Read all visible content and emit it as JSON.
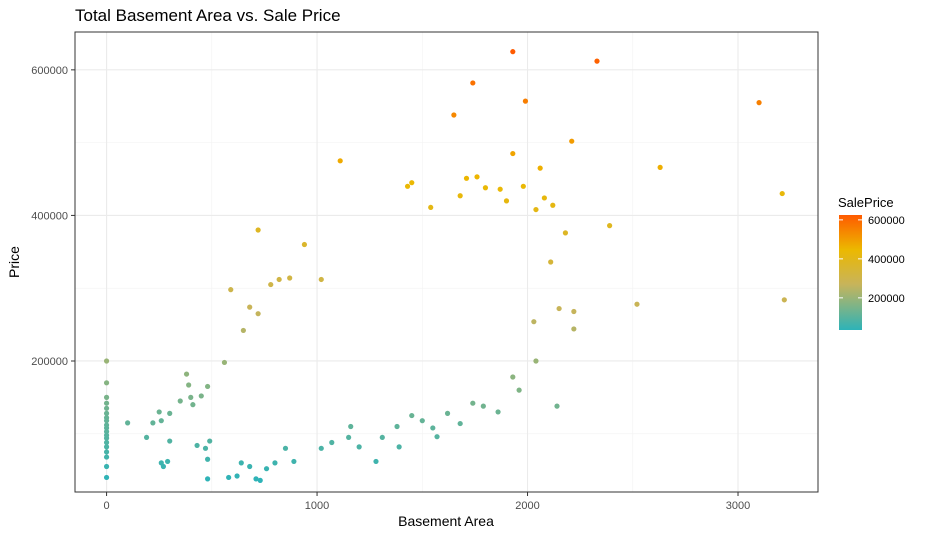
{
  "chart_data": {
    "type": "scatter",
    "title": "Total Basement Area vs. Sale Price",
    "xlabel": "Basement Area",
    "ylabel": "Price",
    "xlim": [
      -150,
      3380
    ],
    "ylim": [
      20000,
      652000
    ],
    "x_ticks": [
      0,
      1000,
      2000,
      3000
    ],
    "y_ticks": [
      200000,
      400000,
      600000
    ],
    "x_tick_labels": [
      "0",
      "1000",
      "2000",
      "3000"
    ],
    "y_tick_labels": [
      "200000",
      "400000",
      "600000"
    ],
    "grid": true,
    "legend": {
      "title": "SalePrice",
      "placement": "right",
      "range": [
        35000,
        625000
      ],
      "ticks": [
        200000,
        400000,
        600000
      ],
      "tick_labels": [
        "200000",
        "400000",
        "600000"
      ],
      "colors": [
        "#2db3b8",
        "#c8b45a",
        "#ecb800",
        "#ff5a00"
      ]
    },
    "points": [
      [
        1930,
        625000
      ],
      [
        2330,
        612000
      ],
      [
        3100,
        555000
      ],
      [
        1740,
        582000
      ],
      [
        1990,
        557000
      ],
      [
        1650,
        538000
      ],
      [
        2210,
        502000
      ],
      [
        1930,
        485000
      ],
      [
        1110,
        475000
      ],
      [
        2630,
        466000
      ],
      [
        2060,
        465000
      ],
      [
        3210,
        430000
      ],
      [
        1430,
        440000
      ],
      [
        1450,
        445000
      ],
      [
        1710,
        451000
      ],
      [
        1800,
        438000
      ],
      [
        1870,
        436000
      ],
      [
        1980,
        440000
      ],
      [
        2080,
        424000
      ],
      [
        2120,
        414000
      ],
      [
        2390,
        386000
      ],
      [
        2520,
        278000
      ],
      [
        3220,
        284000
      ],
      [
        720,
        380000
      ],
      [
        1760,
        453000
      ],
      [
        1540,
        411000
      ],
      [
        1680,
        427000
      ],
      [
        1900,
        420000
      ],
      [
        2040,
        408000
      ],
      [
        2180,
        376000
      ],
      [
        2150,
        272000
      ],
      [
        2220,
        268000
      ],
      [
        2220,
        244000
      ],
      [
        2030,
        254000
      ],
      [
        2110,
        336000
      ],
      [
        2040,
        200000
      ],
      [
        2140,
        138000
      ],
      [
        1960,
        160000
      ],
      [
        1930,
        178000
      ],
      [
        940,
        360000
      ],
      [
        1020,
        312000
      ],
      [
        820,
        312000
      ],
      [
        780,
        305000
      ],
      [
        870,
        314000
      ],
      [
        650,
        242000
      ],
      [
        590,
        298000
      ],
      [
        680,
        274000
      ],
      [
        720,
        265000
      ],
      [
        560,
        198000
      ],
      [
        480,
        165000
      ],
      [
        450,
        152000
      ],
      [
        380,
        182000
      ],
      [
        390,
        167000
      ],
      [
        400,
        150000
      ],
      [
        350,
        145000
      ],
      [
        410,
        140000
      ],
      [
        300,
        128000
      ],
      [
        250,
        130000
      ],
      [
        260,
        118000
      ],
      [
        220,
        115000
      ],
      [
        100,
        115000
      ],
      [
        190,
        95000
      ],
      [
        260,
        60000
      ],
      [
        270,
        55000
      ],
      [
        290,
        62000
      ],
      [
        300,
        90000
      ],
      [
        430,
        84000
      ],
      [
        470,
        80000
      ],
      [
        480,
        65000
      ],
      [
        490,
        90000
      ],
      [
        480,
        38000
      ],
      [
        580,
        40000
      ],
      [
        620,
        42000
      ],
      [
        640,
        60000
      ],
      [
        680,
        55000
      ],
      [
        710,
        38000
      ],
      [
        730,
        36000
      ],
      [
        760,
        52000
      ],
      [
        800,
        60000
      ],
      [
        850,
        80000
      ],
      [
        890,
        62000
      ],
      [
        1020,
        80000
      ],
      [
        1070,
        88000
      ],
      [
        1150,
        95000
      ],
      [
        1160,
        110000
      ],
      [
        1200,
        82000
      ],
      [
        1280,
        62000
      ],
      [
        1310,
        95000
      ],
      [
        1380,
        110000
      ],
      [
        1390,
        82000
      ],
      [
        1450,
        125000
      ],
      [
        1500,
        118000
      ],
      [
        1550,
        108000
      ],
      [
        1570,
        96000
      ],
      [
        1620,
        128000
      ],
      [
        1680,
        114000
      ],
      [
        1740,
        142000
      ],
      [
        1790,
        138000
      ],
      [
        1860,
        130000
      ],
      [
        0,
        200000
      ],
      [
        0,
        170000
      ],
      [
        0,
        150000
      ],
      [
        0,
        142000
      ],
      [
        0,
        135000
      ],
      [
        0,
        128000
      ],
      [
        0,
        122000
      ],
      [
        0,
        118000
      ],
      [
        0,
        112000
      ],
      [
        0,
        108000
      ],
      [
        0,
        103000
      ],
      [
        0,
        98000
      ],
      [
        0,
        94000
      ],
      [
        0,
        88000
      ],
      [
        0,
        82000
      ],
      [
        0,
        75000
      ],
      [
        0,
        68000
      ],
      [
        0,
        55000
      ],
      [
        0,
        40000
      ]
    ]
  }
}
